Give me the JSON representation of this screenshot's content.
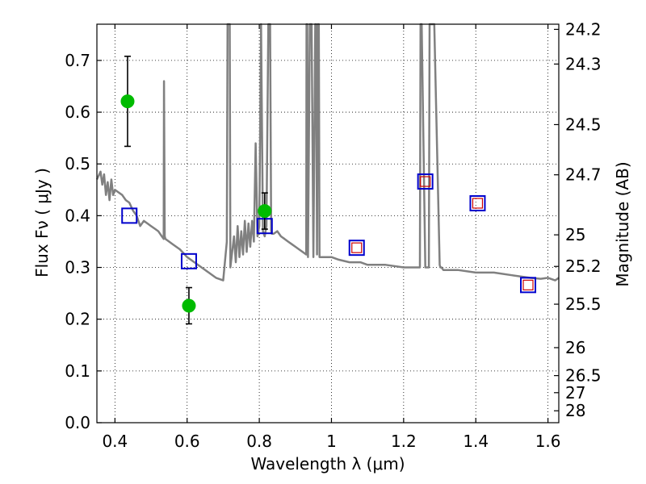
{
  "chart_data": {
    "type": "scatter",
    "xlabel": "Wavelength  λ (μm)",
    "ylabel": "Flux  Fν  ( μJy )",
    "ylabel_right": "Magnitude (AB)",
    "xlim": [
      0.35,
      1.63
    ],
    "ylim": [
      0.0,
      0.77
    ],
    "grid": true,
    "x_ticks": [
      0.4,
      0.6,
      0.8,
      1.0,
      1.2,
      1.4,
      1.6
    ],
    "x_tick_labels": [
      "0.4",
      "0.6",
      "0.8",
      "1",
      "1.2",
      "1.4",
      "1.6"
    ],
    "y_ticks": [
      0.0,
      0.1,
      0.2,
      0.3,
      0.4,
      0.5,
      0.6,
      0.7
    ],
    "y_tick_labels": [
      "0.0",
      "0.1",
      "0.2",
      "0.3",
      "0.4",
      "0.5",
      "0.6",
      "0.7"
    ],
    "right_ticks": [
      {
        "label": "24.2",
        "flux": 0.76
      },
      {
        "label": "24.3",
        "flux": 0.693
      },
      {
        "label": "24.5",
        "flux": 0.576
      },
      {
        "label": "24.7",
        "flux": 0.479
      },
      {
        "label": "25",
        "flux": 0.363
      },
      {
        "label": "25.2",
        "flux": 0.302
      },
      {
        "label": "25.5",
        "flux": 0.229
      },
      {
        "label": "26",
        "flux": 0.145
      },
      {
        "label": "26.5",
        "flux": 0.091
      },
      {
        "label": "27",
        "flux": 0.058
      },
      {
        "label": "28",
        "flux": 0.023
      }
    ],
    "series": [
      {
        "kind": "line",
        "color": "#808080",
        "x": [
          0.35,
          0.36,
          0.365,
          0.37,
          0.375,
          0.38,
          0.385,
          0.39,
          0.395,
          0.4,
          0.41,
          0.42,
          0.43,
          0.44,
          0.45,
          0.46,
          0.47,
          0.48,
          0.49,
          0.5,
          0.51,
          0.52,
          0.53,
          0.535,
          0.536,
          0.538,
          0.54,
          0.55,
          0.56,
          0.58,
          0.6,
          0.62,
          0.64,
          0.66,
          0.68,
          0.7,
          0.71,
          0.712,
          0.715,
          0.718,
          0.72,
          0.73,
          0.735,
          0.74,
          0.745,
          0.75,
          0.755,
          0.76,
          0.765,
          0.77,
          0.775,
          0.78,
          0.785,
          0.79,
          0.795,
          0.8,
          0.805,
          0.81,
          0.815,
          0.82,
          0.825,
          0.83,
          0.833,
          0.835,
          0.84,
          0.85,
          0.86,
          0.87,
          0.88,
          0.89,
          0.9,
          0.91,
          0.92,
          0.93,
          0.931,
          0.933,
          0.935,
          0.94,
          0.945,
          0.95,
          0.955,
          0.957,
          0.96,
          0.962,
          0.965,
          0.967,
          0.97,
          0.98,
          1.0,
          1.02,
          1.05,
          1.08,
          1.1,
          1.15,
          1.2,
          1.245,
          1.247,
          1.25,
          1.26,
          1.27,
          1.272,
          1.275,
          1.28,
          1.285,
          1.3,
          1.302,
          1.305,
          1.31,
          1.35,
          1.4,
          1.45,
          1.5,
          1.55,
          1.58,
          1.6,
          1.62,
          1.63
        ],
        "y": [
          0.47,
          0.485,
          0.46,
          0.48,
          0.44,
          0.465,
          0.43,
          0.47,
          0.44,
          0.45,
          0.445,
          0.44,
          0.43,
          0.425,
          0.41,
          0.4,
          0.38,
          0.39,
          0.385,
          0.38,
          0.375,
          0.37,
          0.36,
          0.355,
          0.66,
          0.36,
          0.355,
          0.35,
          0.345,
          0.335,
          0.32,
          0.31,
          0.3,
          0.29,
          0.28,
          0.275,
          0.35,
          0.77,
          0.77,
          0.77,
          0.3,
          0.36,
          0.31,
          0.38,
          0.32,
          0.37,
          0.325,
          0.39,
          0.33,
          0.385,
          0.34,
          0.39,
          0.35,
          0.54,
          0.36,
          0.38,
          0.77,
          0.37,
          0.36,
          0.38,
          0.77,
          0.77,
          0.37,
          0.365,
          0.365,
          0.37,
          0.36,
          0.355,
          0.35,
          0.345,
          0.34,
          0.335,
          0.33,
          0.325,
          0.77,
          0.77,
          0.32,
          0.77,
          0.77,
          0.32,
          0.77,
          0.77,
          0.325,
          0.77,
          0.77,
          0.32,
          0.32,
          0.32,
          0.32,
          0.315,
          0.31,
          0.31,
          0.305,
          0.305,
          0.3,
          0.3,
          0.77,
          0.77,
          0.3,
          0.3,
          0.77,
          0.77,
          0.77,
          0.77,
          0.305,
          0.3,
          0.3,
          0.295,
          0.295,
          0.29,
          0.29,
          0.285,
          0.28,
          0.278,
          0.28,
          0.275,
          0.28
        ]
      },
      {
        "name": "",
        "kind": "open-square",
        "color": "#0000cc",
        "x": [
          0.44,
          0.605,
          0.815,
          1.07,
          1.26,
          1.405,
          1.545
        ],
        "y": [
          0.4,
          0.312,
          0.38,
          0.338,
          0.466,
          0.424,
          0.266
        ]
      },
      {
        "name": "",
        "kind": "inner-square",
        "color": "#cc0000",
        "x": [
          1.07,
          1.26,
          1.405,
          1.545
        ],
        "y": [
          0.338,
          0.466,
          0.424,
          0.266
        ]
      },
      {
        "name": "",
        "kind": "point-errorbar",
        "color": "#00bb00",
        "x": [
          0.435,
          0.605,
          0.815
        ],
        "y": [
          0.621,
          0.226,
          0.409
        ],
        "yerr": [
          0.087,
          0.035,
          0.035
        ]
      }
    ]
  }
}
